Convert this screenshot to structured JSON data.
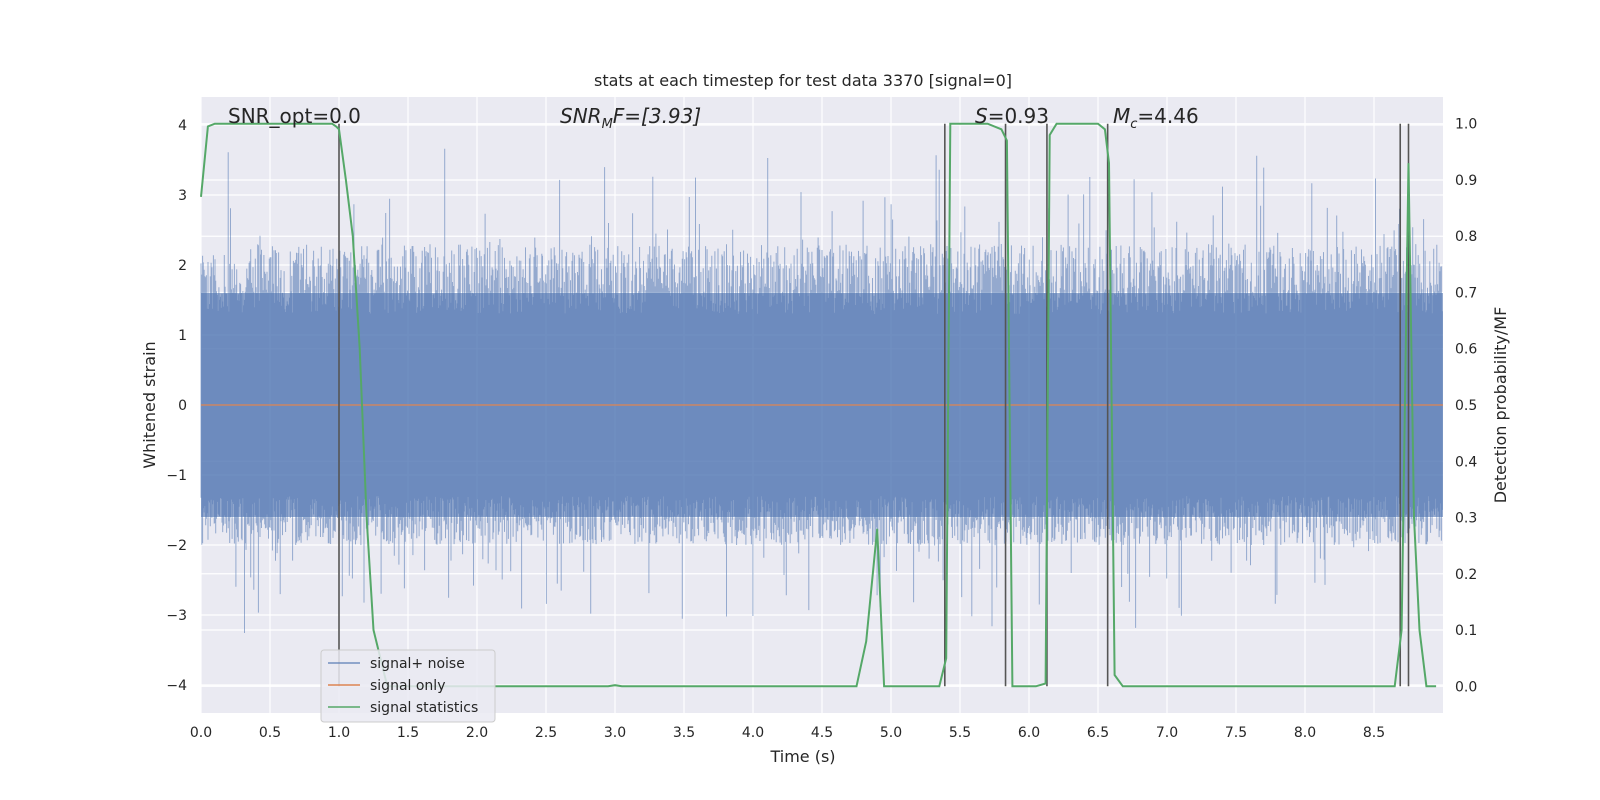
{
  "chart_data": {
    "type": "line",
    "title": "stats at each timestep for test data 3370 [signal=0]",
    "xlabel": "Time (s)",
    "ylabel": "Whitened strain",
    "y2label": "Detection probability/MF",
    "xlim": [
      0,
      9
    ],
    "ylim": [
      -4.4,
      4.4
    ],
    "y2lim": [
      -0.0475,
      1.0475
    ],
    "x_ticks": [
      0.0,
      0.5,
      1.0,
      1.5,
      2.0,
      2.5,
      3.0,
      3.5,
      4.0,
      4.5,
      5.0,
      5.5,
      6.0,
      6.5,
      7.0,
      7.5,
      8.0,
      8.5
    ],
    "x_tick_labels": [
      "0.0",
      "0.5",
      "1.0",
      "1.5",
      "2.0",
      "2.5",
      "3.0",
      "3.5",
      "4.0",
      "4.5",
      "5.0",
      "5.5",
      "6.0",
      "6.5",
      "7.0",
      "7.5",
      "8.0",
      "8.5"
    ],
    "y_ticks": [
      -4,
      -3,
      -2,
      -1,
      0,
      1,
      2,
      3,
      4
    ],
    "y_tick_labels": [
      "−4",
      "−3",
      "−2",
      "−1",
      "0",
      "1",
      "2",
      "3",
      "4"
    ],
    "y2_ticks": [
      0.0,
      0.1,
      0.2,
      0.3,
      0.4,
      0.5,
      0.6,
      0.7,
      0.8,
      0.9,
      1.0
    ],
    "y2_tick_labels": [
      "0.0",
      "0.1",
      "0.2",
      "0.3",
      "0.4",
      "0.5",
      "0.6",
      "0.7",
      "0.8",
      "0.9",
      "1.0"
    ],
    "grid": true,
    "legend_position": "lower-left",
    "annotations": {
      "snr_opt": "SNR_opt=0.0",
      "snr_mf_symbol": "SNR",
      "snr_mf_subscript": "M",
      "snr_mf_rest": "F=[3.93]",
      "s_symbol": "S",
      "s_rest": "=0.93",
      "mc_symbol": "M",
      "mc_subscript": "c",
      "mc_rest": "=4.46"
    },
    "series": [
      {
        "name": "signal+ noise",
        "color": "#4c72b0",
        "opacity": 0.55,
        "axis": "left",
        "description_level": "dense noise band",
        "band_typical": [
          -2.0,
          2.3
        ],
        "peak_max": 4.0,
        "peak_min": -3.5
      },
      {
        "name": "signal only",
        "color": "#dd8452",
        "axis": "left",
        "x": [
          0,
          9
        ],
        "values": [
          0,
          0
        ]
      },
      {
        "name": "signal statistics",
        "color": "#55a868",
        "axis": "right",
        "x": [
          0.0,
          0.05,
          0.1,
          0.95,
          0.98,
          1.0,
          1.05,
          1.1,
          1.15,
          1.2,
          1.25,
          1.35,
          2.95,
          3.0,
          3.05,
          4.75,
          4.82,
          4.9,
          4.95,
          5.35,
          5.4,
          5.43,
          5.7,
          5.8,
          5.84,
          5.88,
          6.05,
          6.12,
          6.15,
          6.2,
          6.5,
          6.55,
          6.58,
          6.62,
          6.68,
          8.65,
          8.7,
          8.75,
          8.79,
          8.83,
          8.88,
          8.95
        ],
        "values": [
          0.87,
          0.995,
          1.0,
          1.0,
          0.995,
          0.99,
          0.9,
          0.8,
          0.6,
          0.3,
          0.1,
          0.0,
          0.0,
          0.002,
          0.0,
          0.0,
          0.08,
          0.28,
          0.0,
          0.0,
          0.05,
          1.0,
          1.0,
          0.99,
          0.97,
          0.0,
          0.0,
          0.005,
          0.98,
          1.0,
          1.0,
          0.99,
          0.93,
          0.02,
          0.0,
          0.0,
          0.1,
          0.93,
          0.3,
          0.1,
          0.0,
          0.0
        ]
      }
    ],
    "vertical_lines": [
      {
        "x": 1.0,
        "color": "#555555"
      },
      {
        "x": 5.39,
        "color": "#555555"
      },
      {
        "x": 5.83,
        "color": "#555555"
      },
      {
        "x": 6.13,
        "color": "#555555"
      },
      {
        "x": 6.57,
        "color": "#555555"
      },
      {
        "x": 8.69,
        "color": "#555555"
      },
      {
        "x": 8.75,
        "color": "#555555"
      }
    ],
    "colors": {
      "plot_background": "#eaeaf2",
      "grid": "#ffffff",
      "legend_background": "#eaeaf2",
      "legend_border": "#cccccc"
    }
  }
}
